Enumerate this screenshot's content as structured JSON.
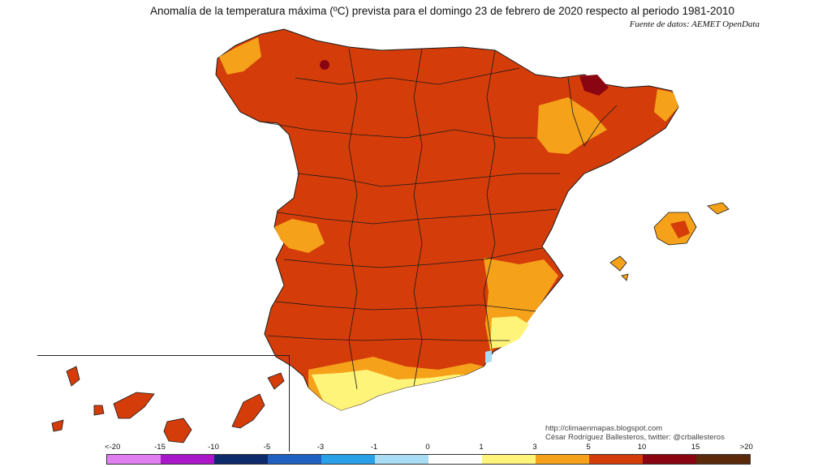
{
  "header": {
    "title": "Anomalía de la temperatura máxima (ºC) prevista para el domingo 23 de febrero de 2020 respecto al periodo 1981-2010",
    "source": "Fuente de datos: AEMET OpenData"
  },
  "credits": {
    "url": "http://climaenmapas.blogspot.com",
    "author": "César Rodríguez Ballesteros, twitter: @crballesteros"
  },
  "legend": {
    "ticks": [
      "<-20",
      "-15",
      "-10",
      "-5",
      "-3",
      "-1",
      "0",
      "1",
      "3",
      "5",
      "10",
      "15",
      ">20"
    ],
    "colors": [
      "#e07ff0",
      "#a817c8",
      "#0d2a6b",
      "#2060c0",
      "#2aa0e8",
      "#a8dcf4",
      "#ffffff",
      "#fff47a",
      "#f5a21a",
      "#d43d0a",
      "#8a0512",
      "#5a2a0a"
    ]
  },
  "map": {
    "region": "Spain",
    "palette": {
      "main": "#d43d0a",
      "warm": "#f5a21a",
      "mild": "#fff47a",
      "hot": "#8a0512",
      "cool": "#a8dcf4",
      "border": "#1a1a1a"
    }
  }
}
